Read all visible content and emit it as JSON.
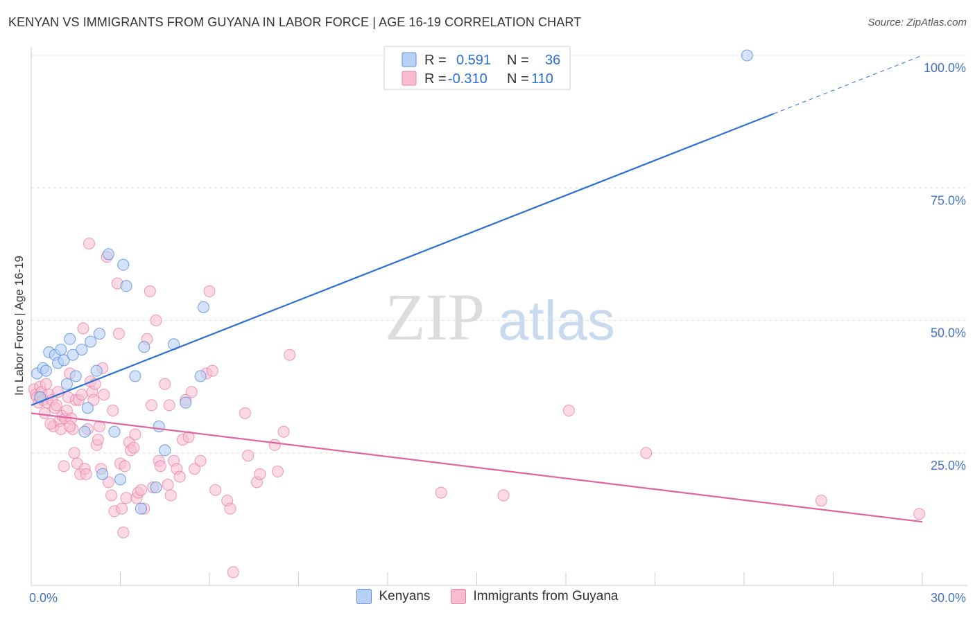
{
  "header": {
    "title": "KENYAN VS IMMIGRANTS FROM GUYANA IN LABOR FORCE | AGE 16-19 CORRELATION CHART",
    "source": "Source: ZipAtlas.com"
  },
  "watermark": {
    "zip": "ZIP",
    "atlas": "atlas"
  },
  "colors": {
    "blue_fill": "#b7d1f5",
    "blue_stroke": "#5b8fd6",
    "blue_line": "#2a6fd6",
    "pink_fill": "#f8bcd0",
    "pink_stroke": "#e87fa2",
    "pink_line": "#e0669a",
    "grid": "#dddddd",
    "axis_text": "#4472c4"
  },
  "legend": {
    "rows": [
      {
        "r_label": "R =",
        "r_value": "0.591",
        "n_label": "N =",
        "n_value": "36"
      },
      {
        "r_label": "R =",
        "r_value": "-0.310",
        "n_label": "N =",
        "n_value": "110"
      }
    ]
  },
  "bottom_legend": {
    "kenyans": "Kenyans",
    "guyana": "Immigrants from Guyana"
  },
  "chart_data": {
    "type": "scatter",
    "title": "KENYAN VS IMMIGRANTS FROM GUYANA IN LABOR FORCE | AGE 16-19 CORRELATION CHART",
    "xlabel": "",
    "ylabel": "In Labor Force | Age 16-19",
    "xlim": [
      0,
      30
    ],
    "ylim": [
      0,
      105
    ],
    "x_tick_labels": [
      "0.0%",
      "30.0%"
    ],
    "y_ticks": [
      25,
      50,
      75,
      100
    ],
    "y_tick_labels": [
      "25.0%",
      "50.0%",
      "75.0%",
      "100.0%"
    ],
    "series": [
      {
        "name": "Kenyans",
        "color": "#5b8fd6",
        "r": 0.591,
        "n": 36,
        "trend": {
          "x0": 0,
          "y0": 34.0,
          "x1": 25.0,
          "y1": 89.0,
          "dash_x1": 30.0,
          "dash_y1": 100.0
        },
        "points": [
          [
            0.2,
            40.0
          ],
          [
            0.4,
            41.0
          ],
          [
            0.5,
            40.5
          ],
          [
            0.6,
            44.0
          ],
          [
            0.8,
            43.5
          ],
          [
            0.9,
            42.0
          ],
          [
            1.0,
            44.5
          ],
          [
            1.1,
            42.5
          ],
          [
            1.2,
            38.0
          ],
          [
            1.3,
            46.5
          ],
          [
            1.4,
            43.5
          ],
          [
            1.5,
            39.5
          ],
          [
            1.7,
            44.5
          ],
          [
            1.8,
            29.0
          ],
          [
            1.9,
            33.5
          ],
          [
            2.0,
            46.0
          ],
          [
            2.2,
            40.5
          ],
          [
            2.3,
            47.5
          ],
          [
            2.4,
            21.0
          ],
          [
            2.6,
            62.5
          ],
          [
            2.8,
            29.0
          ],
          [
            3.0,
            20.0
          ],
          [
            3.1,
            60.5
          ],
          [
            3.2,
            56.5
          ],
          [
            3.5,
            39.5
          ],
          [
            3.7,
            14.5
          ],
          [
            3.8,
            45.0
          ],
          [
            4.2,
            18.5
          ],
          [
            4.3,
            30.0
          ],
          [
            4.5,
            25.5
          ],
          [
            4.8,
            45.5
          ],
          [
            5.2,
            34.5
          ],
          [
            5.7,
            39.5
          ],
          [
            5.8,
            52.5
          ],
          [
            24.1,
            100.0
          ],
          [
            0.3,
            35.5
          ]
        ]
      },
      {
        "name": "Immigrants from Guyana",
        "color": "#e87fa2",
        "r": -0.31,
        "n": 110,
        "trend": {
          "x0": 0,
          "y0": 32.5,
          "x1": 30.0,
          "y1": 12.0
        },
        "points": [
          [
            0.1,
            37.0
          ],
          [
            0.15,
            36.0
          ],
          [
            0.2,
            35.5
          ],
          [
            0.25,
            34.5
          ],
          [
            0.3,
            37.5
          ],
          [
            0.35,
            36.5
          ],
          [
            0.4,
            35.0
          ],
          [
            0.45,
            32.5
          ],
          [
            0.5,
            38.0
          ],
          [
            0.55,
            34.5
          ],
          [
            0.6,
            36.0
          ],
          [
            0.7,
            35.0
          ],
          [
            0.75,
            30.0
          ],
          [
            0.8,
            33.5
          ],
          [
            0.85,
            34.0
          ],
          [
            0.9,
            36.5
          ],
          [
            0.95,
            31.0
          ],
          [
            1.0,
            29.5
          ],
          [
            1.05,
            32.0
          ],
          [
            1.1,
            22.5
          ],
          [
            1.15,
            31.5
          ],
          [
            1.2,
            33.0
          ],
          [
            1.25,
            35.5
          ],
          [
            1.3,
            40.0
          ],
          [
            1.35,
            31.5
          ],
          [
            1.4,
            29.5
          ],
          [
            1.45,
            25.0
          ],
          [
            1.5,
            35.0
          ],
          [
            1.55,
            23.0
          ],
          [
            1.6,
            35.0
          ],
          [
            1.65,
            21.0
          ],
          [
            1.7,
            36.0
          ],
          [
            1.75,
            48.5
          ],
          [
            1.8,
            22.0
          ],
          [
            1.85,
            21.0
          ],
          [
            1.9,
            29.5
          ],
          [
            1.95,
            64.5
          ],
          [
            2.0,
            38.5
          ],
          [
            2.05,
            36.5
          ],
          [
            2.1,
            35.0
          ],
          [
            2.15,
            38.0
          ],
          [
            2.2,
            26.5
          ],
          [
            2.25,
            27.5
          ],
          [
            2.3,
            30.0
          ],
          [
            2.35,
            22.0
          ],
          [
            2.4,
            41.0
          ],
          [
            2.45,
            36.0
          ],
          [
            2.55,
            62.0
          ],
          [
            2.6,
            19.5
          ],
          [
            2.7,
            17.0
          ],
          [
            2.8,
            14.0
          ],
          [
            2.9,
            57.0
          ],
          [
            2.95,
            47.5
          ],
          [
            3.0,
            23.0
          ],
          [
            3.05,
            14.5
          ],
          [
            3.1,
            10.0
          ],
          [
            3.2,
            16.5
          ],
          [
            3.3,
            27.0
          ],
          [
            3.35,
            25.5
          ],
          [
            3.45,
            26.0
          ],
          [
            3.5,
            28.5
          ],
          [
            3.55,
            16.5
          ],
          [
            3.6,
            17.5
          ],
          [
            3.7,
            18.0
          ],
          [
            3.8,
            14.5
          ],
          [
            3.9,
            46.5
          ],
          [
            4.0,
            55.5
          ],
          [
            4.1,
            18.5
          ],
          [
            4.2,
            50.0
          ],
          [
            4.3,
            23.5
          ],
          [
            4.35,
            22.5
          ],
          [
            4.5,
            38.0
          ],
          [
            4.6,
            19.0
          ],
          [
            4.65,
            34.0
          ],
          [
            4.7,
            17.0
          ],
          [
            4.8,
            23.5
          ],
          [
            4.9,
            22.0
          ],
          [
            5.0,
            20.5
          ],
          [
            5.1,
            27.5
          ],
          [
            5.2,
            35.0
          ],
          [
            5.3,
            28.0
          ],
          [
            5.4,
            36.5
          ],
          [
            5.5,
            22.0
          ],
          [
            5.7,
            23.5
          ],
          [
            5.9,
            40.0
          ],
          [
            6.0,
            55.5
          ],
          [
            6.1,
            40.5
          ],
          [
            6.2,
            18.0
          ],
          [
            6.6,
            16.0
          ],
          [
            6.7,
            14.5
          ],
          [
            6.8,
            2.5
          ],
          [
            7.2,
            32.5
          ],
          [
            7.3,
            24.5
          ],
          [
            7.6,
            19.5
          ],
          [
            7.7,
            21.0
          ],
          [
            8.2,
            26.5
          ],
          [
            8.3,
            21.5
          ],
          [
            8.5,
            29.0
          ],
          [
            8.7,
            43.5
          ],
          [
            13.8,
            17.5
          ],
          [
            15.9,
            17.0
          ],
          [
            18.1,
            33.0
          ],
          [
            20.7,
            25.0
          ],
          [
            26.6,
            16.0
          ],
          [
            29.9,
            13.5
          ],
          [
            1.3,
            30.0
          ],
          [
            0.65,
            30.5
          ],
          [
            2.75,
            33.0
          ],
          [
            4.05,
            34.0
          ],
          [
            3.15,
            22.5
          ]
        ]
      }
    ]
  }
}
